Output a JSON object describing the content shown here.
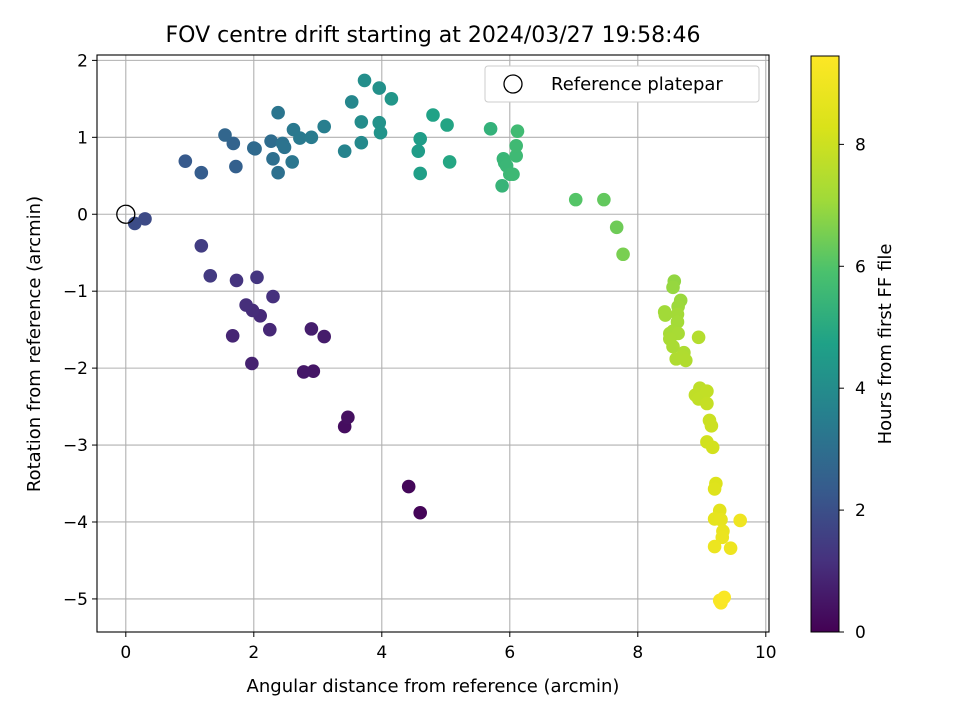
{
  "chart_data": {
    "type": "scatter",
    "title": "FOV centre drift starting at 2024/03/27 19:58:46",
    "xlabel": "Angular distance from reference (arcmin)",
    "ylabel": "Rotation from reference (arcmin)",
    "xlim": [
      -0.45,
      10.05
    ],
    "ylim": [
      -5.43,
      2.07
    ],
    "xticks": [
      0,
      2,
      4,
      6,
      8,
      10
    ],
    "yticks": [
      -5,
      -4,
      -3,
      -2,
      -1,
      0,
      1,
      2
    ],
    "xtick_labels": [
      "0",
      "2",
      "4",
      "6",
      "8",
      "10"
    ],
    "ytick_labels": [
      "−5",
      "−4",
      "−3",
      "−2",
      "−1",
      "0",
      "1",
      "2"
    ],
    "grid": true,
    "legend": {
      "placement": "top-right",
      "entries": [
        "Reference platepar"
      ]
    },
    "colorbar": {
      "label": "Hours from first FF file",
      "colormap": "viridis",
      "range": [
        0,
        9.45
      ],
      "ticks": [
        0,
        2,
        4,
        6,
        8
      ],
      "tick_labels": [
        "0",
        "2",
        "4",
        "6",
        "8"
      ]
    },
    "reference_point": {
      "x": 0,
      "y": 0
    },
    "series": [
      {
        "points": [
          {
            "x": 4.6,
            "y": -3.88,
            "t": 0.1
          },
          {
            "x": 4.42,
            "y": -3.54,
            "t": 0.15
          },
          {
            "x": 3.42,
            "y": -2.76,
            "t": 0.3
          },
          {
            "x": 3.47,
            "y": -2.64,
            "t": 0.35
          },
          {
            "x": 2.93,
            "y": -2.04,
            "t": 0.5
          },
          {
            "x": 2.78,
            "y": -2.05,
            "t": 0.55
          },
          {
            "x": 3.1,
            "y": -1.59,
            "t": 0.65
          },
          {
            "x": 2.9,
            "y": -1.49,
            "t": 0.7
          },
          {
            "x": 1.97,
            "y": -1.94,
            "t": 0.8
          },
          {
            "x": 1.67,
            "y": -1.58,
            "t": 0.9
          },
          {
            "x": 2.25,
            "y": -1.5,
            "t": 0.95
          },
          {
            "x": 2.1,
            "y": -1.32,
            "t": 1.0
          },
          {
            "x": 1.98,
            "y": -1.25,
            "t": 1.05
          },
          {
            "x": 1.88,
            "y": -1.18,
            "t": 1.1
          },
          {
            "x": 2.3,
            "y": -1.07,
            "t": 1.15
          },
          {
            "x": 1.73,
            "y": -0.86,
            "t": 1.25
          },
          {
            "x": 2.05,
            "y": -0.82,
            "t": 1.3
          },
          {
            "x": 1.32,
            "y": -0.8,
            "t": 1.4
          },
          {
            "x": 1.18,
            "y": -0.41,
            "t": 1.5
          },
          {
            "x": 0.3,
            "y": -0.06,
            "t": 1.85
          },
          {
            "x": 0.14,
            "y": -0.12,
            "t": 1.9
          },
          {
            "x": 0.93,
            "y": 0.69,
            "t": 2.3
          },
          {
            "x": 1.18,
            "y": 0.54,
            "t": 2.4
          },
          {
            "x": 1.72,
            "y": 0.62,
            "t": 2.5
          },
          {
            "x": 1.68,
            "y": 0.92,
            "t": 2.6
          },
          {
            "x": 1.55,
            "y": 1.03,
            "t": 2.7
          },
          {
            "x": 2.0,
            "y": 0.86,
            "t": 2.8
          },
          {
            "x": 2.02,
            "y": 0.85,
            "t": 2.85
          },
          {
            "x": 2.27,
            "y": 0.95,
            "t": 2.9
          },
          {
            "x": 2.3,
            "y": 0.72,
            "t": 3.0
          },
          {
            "x": 2.38,
            "y": 0.54,
            "t": 3.05
          },
          {
            "x": 2.45,
            "y": 0.92,
            "t": 3.1
          },
          {
            "x": 2.48,
            "y": 0.87,
            "t": 3.15
          },
          {
            "x": 2.38,
            "y": 1.32,
            "t": 3.2
          },
          {
            "x": 2.6,
            "y": 0.68,
            "t": 3.25
          },
          {
            "x": 2.62,
            "y": 1.1,
            "t": 3.3
          },
          {
            "x": 2.72,
            "y": 0.99,
            "t": 3.35
          },
          {
            "x": 2.9,
            "y": 1.0,
            "t": 3.4
          },
          {
            "x": 3.1,
            "y": 1.14,
            "t": 3.5
          },
          {
            "x": 3.42,
            "y": 0.82,
            "t": 3.7
          },
          {
            "x": 3.53,
            "y": 1.46,
            "t": 3.8
          },
          {
            "x": 3.68,
            "y": 0.93,
            "t": 3.9
          },
          {
            "x": 3.68,
            "y": 1.2,
            "t": 4.0
          },
          {
            "x": 3.73,
            "y": 1.74,
            "t": 4.05
          },
          {
            "x": 3.96,
            "y": 1.64,
            "t": 4.15
          },
          {
            "x": 3.96,
            "y": 1.19,
            "t": 4.2
          },
          {
            "x": 3.98,
            "y": 1.06,
            "t": 4.25
          },
          {
            "x": 4.15,
            "y": 1.5,
            "t": 4.35
          },
          {
            "x": 4.57,
            "y": 0.82,
            "t": 4.55
          },
          {
            "x": 4.6,
            "y": 0.98,
            "t": 4.6
          },
          {
            "x": 4.6,
            "y": 0.53,
            "t": 4.65
          },
          {
            "x": 4.8,
            "y": 1.29,
            "t": 4.75
          },
          {
            "x": 5.02,
            "y": 1.16,
            "t": 4.85
          },
          {
            "x": 5.06,
            "y": 0.68,
            "t": 4.9
          },
          {
            "x": 5.7,
            "y": 1.11,
            "t": 5.3
          },
          {
            "x": 5.88,
            "y": 0.37,
            "t": 5.4
          },
          {
            "x": 5.9,
            "y": 0.72,
            "t": 5.45
          },
          {
            "x": 5.92,
            "y": 0.67,
            "t": 5.48
          },
          {
            "x": 5.95,
            "y": 0.63,
            "t": 5.5
          },
          {
            "x": 6.0,
            "y": 0.52,
            "t": 5.55
          },
          {
            "x": 6.05,
            "y": 0.52,
            "t": 5.58
          },
          {
            "x": 6.1,
            "y": 0.76,
            "t": 5.6
          },
          {
            "x": 6.1,
            "y": 0.89,
            "t": 5.62
          },
          {
            "x": 6.12,
            "y": 1.08,
            "t": 5.65
          },
          {
            "x": 7.03,
            "y": 0.19,
            "t": 6.05
          },
          {
            "x": 7.47,
            "y": 0.19,
            "t": 6.25
          },
          {
            "x": 7.67,
            "y": -0.17,
            "t": 6.4
          },
          {
            "x": 7.77,
            "y": -0.52,
            "t": 6.55
          },
          {
            "x": 8.57,
            "y": -0.87,
            "t": 6.9
          },
          {
            "x": 8.55,
            "y": -0.95,
            "t": 6.95
          },
          {
            "x": 8.67,
            "y": -1.12,
            "t": 7.0
          },
          {
            "x": 8.63,
            "y": -1.2,
            "t": 7.05
          },
          {
            "x": 8.42,
            "y": -1.27,
            "t": 7.1
          },
          {
            "x": 8.43,
            "y": -1.31,
            "t": 7.12
          },
          {
            "x": 8.62,
            "y": -1.3,
            "t": 7.15
          },
          {
            "x": 8.62,
            "y": -1.4,
            "t": 7.18
          },
          {
            "x": 8.55,
            "y": -1.52,
            "t": 7.2
          },
          {
            "x": 8.5,
            "y": -1.55,
            "t": 7.22
          },
          {
            "x": 8.63,
            "y": -1.55,
            "t": 7.25
          },
          {
            "x": 8.5,
            "y": -1.62,
            "t": 7.28
          },
          {
            "x": 8.55,
            "y": -1.72,
            "t": 7.3
          },
          {
            "x": 8.72,
            "y": -1.8,
            "t": 7.35
          },
          {
            "x": 8.6,
            "y": -1.88,
            "t": 7.4
          },
          {
            "x": 8.7,
            "y": -1.85,
            "t": 7.42
          },
          {
            "x": 8.75,
            "y": -1.9,
            "t": 7.45
          },
          {
            "x": 8.95,
            "y": -1.6,
            "t": 7.5
          },
          {
            "x": 8.97,
            "y": -2.26,
            "t": 7.7
          },
          {
            "x": 8.9,
            "y": -2.35,
            "t": 7.75
          },
          {
            "x": 8.95,
            "y": -2.4,
            "t": 7.78
          },
          {
            "x": 9.08,
            "y": -2.3,
            "t": 7.8
          },
          {
            "x": 9.08,
            "y": -2.46,
            "t": 7.85
          },
          {
            "x": 9.12,
            "y": -2.68,
            "t": 7.95
          },
          {
            "x": 9.15,
            "y": -2.75,
            "t": 8.0
          },
          {
            "x": 9.08,
            "y": -2.96,
            "t": 8.1
          },
          {
            "x": 9.17,
            "y": -3.03,
            "t": 8.15
          },
          {
            "x": 9.22,
            "y": -3.5,
            "t": 8.4
          },
          {
            "x": 9.2,
            "y": -3.57,
            "t": 8.45
          },
          {
            "x": 9.28,
            "y": -3.85,
            "t": 8.6
          },
          {
            "x": 9.2,
            "y": -3.96,
            "t": 8.7
          },
          {
            "x": 9.3,
            "y": -3.97,
            "t": 8.72
          },
          {
            "x": 9.33,
            "y": -4.12,
            "t": 8.8
          },
          {
            "x": 9.32,
            "y": -4.2,
            "t": 8.85
          },
          {
            "x": 9.2,
            "y": -4.32,
            "t": 8.9
          },
          {
            "x": 9.45,
            "y": -4.34,
            "t": 8.95
          },
          {
            "x": 9.6,
            "y": -3.98,
            "t": 9.0
          },
          {
            "x": 9.28,
            "y": -5.02,
            "t": 9.3
          },
          {
            "x": 9.3,
            "y": -5.05,
            "t": 9.33
          },
          {
            "x": 9.35,
            "y": -4.98,
            "t": 9.36
          }
        ]
      }
    ]
  }
}
